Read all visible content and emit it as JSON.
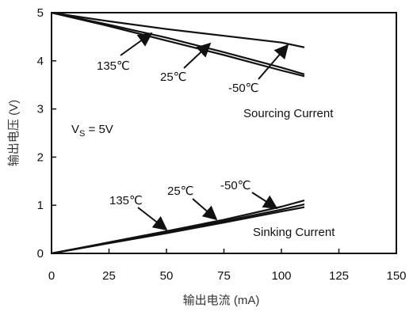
{
  "chart_data": {
    "type": "line",
    "xlabel": "输出电流 (mA)",
    "ylabel": "输出电压 (V)",
    "xlim": [
      0,
      150
    ],
    "ylim": [
      0,
      5
    ],
    "xticks": [
      "0",
      "25",
      "50",
      "75",
      "100",
      "125",
      "150"
    ],
    "yticks": [
      "0",
      "1",
      "2",
      "3",
      "4",
      "5"
    ],
    "grid": false,
    "series": [
      {
        "name": "135℃",
        "group": "Sourcing Current",
        "x": [
          0,
          25,
          50,
          75,
          100,
          110
        ],
        "y": [
          5.0,
          4.72,
          4.42,
          4.12,
          3.8,
          3.68
        ]
      },
      {
        "name": "25℃",
        "group": "Sourcing Current",
        "x": [
          0,
          25,
          50,
          75,
          100,
          110
        ],
        "y": [
          5.0,
          4.75,
          4.48,
          4.18,
          3.86,
          3.72
        ]
      },
      {
        "name": "-50℃",
        "group": "Sourcing Current",
        "x": [
          0,
          25,
          50,
          75,
          100,
          110
        ],
        "y": [
          5.0,
          4.82,
          4.66,
          4.52,
          4.38,
          4.28
        ]
      },
      {
        "name": "135℃",
        "group": "Sinking Current",
        "x": [
          0,
          25,
          50,
          75,
          100,
          110
        ],
        "y": [
          0.0,
          0.23,
          0.46,
          0.7,
          0.97,
          1.1
        ]
      },
      {
        "name": "25℃",
        "group": "Sinking Current",
        "x": [
          0,
          25,
          50,
          75,
          100,
          110
        ],
        "y": [
          0.0,
          0.22,
          0.44,
          0.67,
          0.91,
          1.02
        ]
      },
      {
        "name": "-50℃",
        "group": "Sinking Current",
        "x": [
          0,
          25,
          50,
          75,
          100,
          110
        ],
        "y": [
          0.0,
          0.21,
          0.42,
          0.64,
          0.87,
          0.96
        ]
      }
    ],
    "annotations": {
      "vs": "V",
      "vs_sub": "S",
      "vs_value": " = 5V",
      "sourcing": "Sourcing Current",
      "sinking": "Sinking Current",
      "src_135": "135℃",
      "src_25": "25℃",
      "src_m50": "-50℃",
      "snk_135": "135℃",
      "snk_25": "25℃",
      "snk_m50": "-50℃"
    }
  }
}
